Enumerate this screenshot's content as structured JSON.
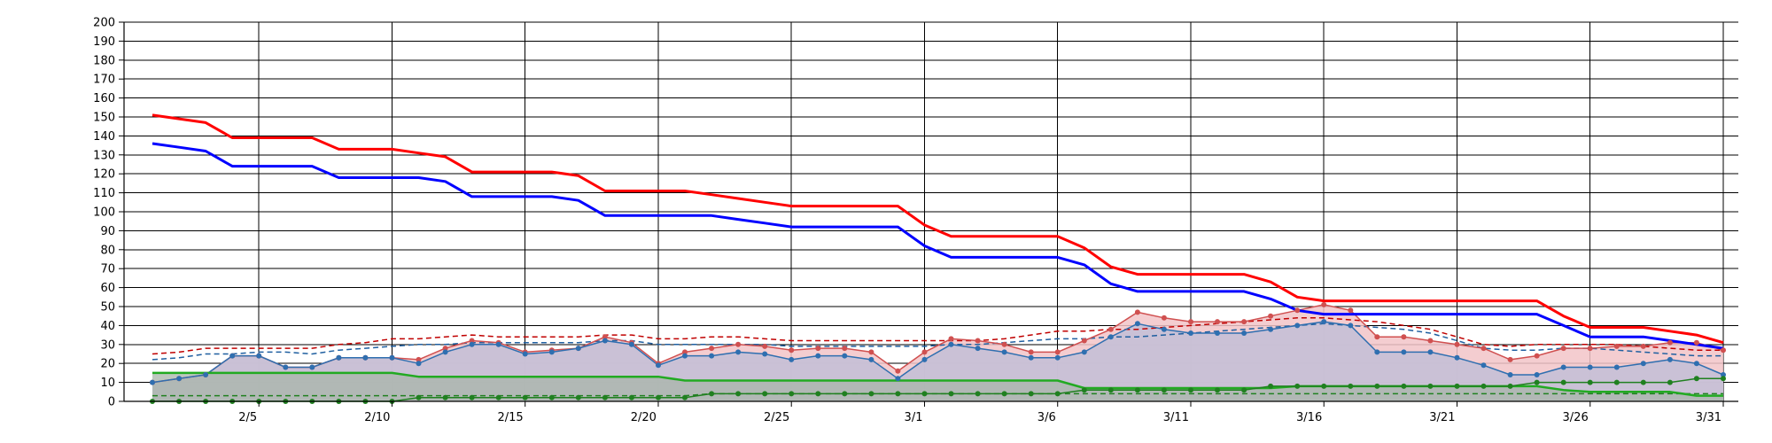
{
  "chart_data": {
    "type": "line",
    "ylim": [
      0,
      200
    ],
    "yticks": [
      0,
      10,
      20,
      30,
      40,
      50,
      60,
      70,
      80,
      90,
      100,
      110,
      120,
      130,
      140,
      150,
      160,
      170,
      180,
      190,
      200
    ],
    "xlim": [
      1,
      60
    ],
    "xticks": [
      {
        "x": 5,
        "label": "2/5"
      },
      {
        "x": 10,
        "label": "2/10"
      },
      {
        "x": 15,
        "label": "2/15"
      },
      {
        "x": 20,
        "label": "2/20"
      },
      {
        "x": 25,
        "label": "2/25"
      },
      {
        "x": 30,
        "label": "3/1"
      },
      {
        "x": 35,
        "label": "3/6"
      },
      {
        "x": 40,
        "label": "3/11"
      },
      {
        "x": 45,
        "label": "3/16"
      },
      {
        "x": 50,
        "label": "3/21"
      },
      {
        "x": 55,
        "label": "3/26"
      },
      {
        "x": 60,
        "label": "3/31"
      }
    ],
    "grid": true,
    "x": [
      1,
      2,
      3,
      4,
      5,
      6,
      7,
      8,
      9,
      10,
      11,
      12,
      13,
      14,
      15,
      16,
      17,
      18,
      19,
      20,
      21,
      22,
      23,
      24,
      25,
      26,
      27,
      28,
      29,
      30,
      31,
      32,
      33,
      34,
      35,
      36,
      37,
      38,
      39,
      40,
      41,
      42,
      43,
      44,
      45,
      46,
      47,
      48,
      49,
      50,
      51,
      52,
      53,
      54,
      55,
      56,
      57,
      58,
      59,
      60
    ],
    "series": [
      {
        "role": "red-step",
        "color": "#ff0000",
        "values": [
          151,
          149,
          147,
          139,
          139,
          139,
          139,
          133,
          133,
          133,
          131,
          129,
          121,
          121,
          121,
          121,
          119,
          111,
          111,
          111,
          111,
          109,
          107,
          105,
          103,
          103,
          103,
          103,
          103,
          93,
          87,
          87,
          87,
          87,
          87,
          81,
          71,
          67,
          67,
          67,
          67,
          67,
          63,
          55,
          53,
          53,
          53,
          53,
          53,
          53,
          53,
          53,
          53,
          45,
          39,
          39,
          39,
          37,
          35,
          31
        ]
      },
      {
        "role": "blue-step",
        "color": "#0000ff",
        "values": [
          136,
          134,
          132,
          124,
          124,
          124,
          124,
          118,
          118,
          118,
          118,
          116,
          108,
          108,
          108,
          108,
          106,
          98,
          98,
          98,
          98,
          98,
          96,
          94,
          92,
          92,
          92,
          92,
          92,
          82,
          76,
          76,
          76,
          76,
          76,
          72,
          62,
          58,
          58,
          58,
          58,
          58,
          54,
          48,
          46,
          46,
          46,
          46,
          46,
          46,
          46,
          46,
          46,
          40,
          34,
          34,
          34,
          32,
          30,
          28
        ]
      },
      {
        "role": "red-dashed",
        "color": "#c00000",
        "values": [
          25,
          26,
          28,
          28,
          28,
          28,
          28,
          30,
          31,
          33,
          33,
          34,
          35,
          34,
          34,
          34,
          34,
          35,
          35,
          33,
          33,
          34,
          34,
          33,
          32,
          32,
          32,
          32,
          32,
          32,
          32,
          32,
          33,
          35,
          37,
          37,
          38,
          38,
          39,
          40,
          41,
          42,
          43,
          44,
          44,
          43,
          42,
          40,
          38,
          34,
          30,
          29,
          30,
          30,
          30,
          30,
          29,
          28,
          27,
          27
        ]
      },
      {
        "role": "blue-dashed",
        "color": "#1f5fa0",
        "values": [
          22,
          23,
          25,
          25,
          26,
          26,
          25,
          27,
          28,
          29,
          30,
          30,
          31,
          31,
          31,
          31,
          31,
          32,
          32,
          30,
          30,
          30,
          30,
          30,
          29,
          29,
          29,
          29,
          29,
          29,
          30,
          30,
          31,
          32,
          33,
          33,
          34,
          34,
          35,
          36,
          37,
          38,
          39,
          40,
          41,
          40,
          39,
          38,
          36,
          32,
          28,
          27,
          27,
          28,
          28,
          27,
          26,
          25,
          24,
          24
        ]
      },
      {
        "role": "red-markers",
        "color": "#d05050",
        "values": [
          10,
          12,
          14,
          24,
          24,
          18,
          18,
          23,
          23,
          23,
          22,
          28,
          32,
          31,
          26,
          27,
          28,
          34,
          31,
          20,
          26,
          28,
          30,
          29,
          27,
          28,
          28,
          26,
          16,
          26,
          33,
          32,
          30,
          26,
          26,
          32,
          38,
          47,
          44,
          42,
          42,
          42,
          45,
          48,
          51,
          48,
          34,
          34,
          32,
          30,
          28,
          22,
          24,
          28,
          28,
          29,
          29,
          31,
          31,
          27
        ]
      },
      {
        "role": "blue-markers",
        "color": "#2f6fb0",
        "values": [
          10,
          12,
          14,
          24,
          24,
          18,
          18,
          23,
          23,
          23,
          20,
          26,
          30,
          30,
          25,
          26,
          28,
          32,
          30,
          19,
          24,
          24,
          26,
          25,
          22,
          24,
          24,
          22,
          12,
          22,
          30,
          28,
          26,
          23,
          23,
          26,
          34,
          41,
          38,
          36,
          36,
          36,
          38,
          40,
          42,
          40,
          26,
          26,
          26,
          23,
          19,
          14,
          14,
          18,
          18,
          18,
          20,
          22,
          20,
          14
        ]
      },
      {
        "role": "green-upper",
        "color": "#22aa22",
        "values": [
          15,
          15,
          15,
          15,
          15,
          15,
          15,
          15,
          15,
          15,
          13,
          13,
          13,
          13,
          13,
          13,
          13,
          13,
          13,
          13,
          11,
          11,
          11,
          11,
          11,
          11,
          11,
          11,
          11,
          11,
          11,
          11,
          11,
          11,
          11,
          7,
          7,
          7,
          7,
          7,
          7,
          7,
          7,
          8,
          8,
          8,
          8,
          8,
          8,
          8,
          8,
          8,
          8,
          6,
          5,
          5,
          5,
          5,
          3,
          3
        ]
      },
      {
        "role": "green-dashed",
        "color": "#208020",
        "values": [
          3,
          3,
          3,
          3,
          3,
          3,
          3,
          3,
          3,
          3,
          3,
          3,
          3,
          3,
          3,
          3,
          3,
          3,
          3,
          3,
          3,
          4,
          4,
          4,
          4,
          4,
          4,
          4,
          4,
          4,
          4,
          4,
          4,
          4,
          4,
          4,
          4,
          4,
          4,
          4,
          4,
          4,
          4,
          4,
          4,
          4,
          4,
          4,
          4,
          4,
          4,
          4,
          4,
          4,
          4,
          4,
          4,
          4,
          4,
          4
        ]
      },
      {
        "role": "green-markers",
        "color": "#208020",
        "values": [
          0,
          0,
          0,
          0,
          0,
          0,
          0,
          0,
          0,
          0,
          2,
          2,
          2,
          2,
          2,
          2,
          2,
          2,
          2,
          2,
          2,
          4,
          4,
          4,
          4,
          4,
          4,
          4,
          4,
          4,
          4,
          4,
          4,
          4,
          4,
          6,
          6,
          6,
          6,
          6,
          6,
          6,
          8,
          8,
          8,
          8,
          8,
          8,
          8,
          8,
          8,
          8,
          10,
          10,
          10,
          10,
          10,
          10,
          12,
          12
        ]
      }
    ]
  }
}
